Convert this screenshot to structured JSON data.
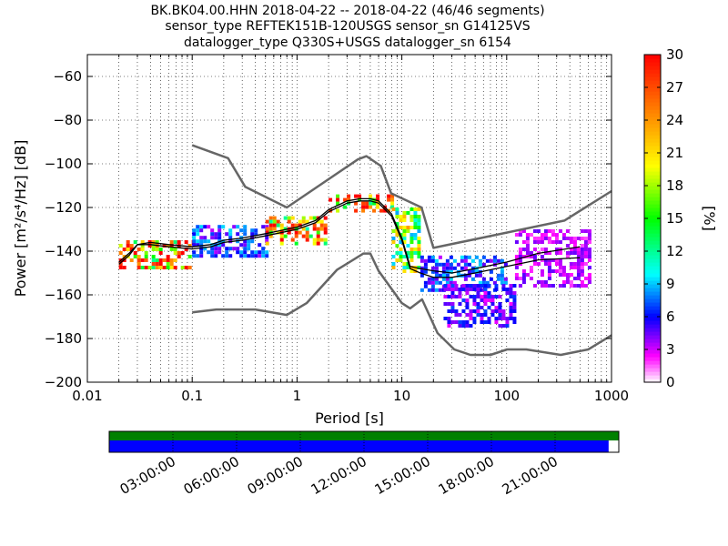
{
  "title_lines": [
    "BK.BK04.00.HHN   2018-04-22 -- 2018-04-22  (46/46 segments)",
    "sensor_type REFTEK151B-120USGS sensor_sn G14125VS",
    "datalogger_type Q330S+USGS datalogger_sn 6154"
  ],
  "chart_data": {
    "type": "heatmap",
    "xlabel": "Period [s]",
    "ylabel": "Power [m²/s⁴/Hz] [dB]",
    "x_scale": "log",
    "xlim": [
      0.01,
      1000
    ],
    "ylim": [
      -200,
      -50
    ],
    "x_ticks": [
      {
        "value": 0.01,
        "label": "0.01"
      },
      {
        "value": 0.1,
        "label": "0.1"
      },
      {
        "value": 1,
        "label": "1"
      },
      {
        "value": 10,
        "label": "10"
      },
      {
        "value": 100,
        "label": "100"
      },
      {
        "value": 1000,
        "label": "1000"
      }
    ],
    "y_ticks": [
      -60,
      -80,
      -100,
      -120,
      -140,
      -160,
      -180,
      -200
    ],
    "grid": true,
    "colorbar": {
      "label": "[%]",
      "min": 0,
      "max": 30,
      "ticks": [
        0,
        3,
        6,
        9,
        12,
        15,
        18,
        21,
        24,
        27,
        30
      ],
      "colormap": "pqlx"
    },
    "series": [
      {
        "name": "high noise model",
        "color": "#666666",
        "x": [
          0.1,
          0.22,
          0.32,
          0.8,
          3.8,
          4.6,
          6.3,
          7.9,
          15.4,
          20,
          354.8,
          1000
        ],
        "y": [
          -91.5,
          -97.4,
          -110.5,
          -120,
          -98,
          -96.5,
          -101,
          -113.5,
          -120,
          -138.5,
          -126,
          -112.5
        ]
      },
      {
        "name": "low noise model",
        "color": "#666666",
        "x": [
          0.1,
          0.17,
          0.4,
          0.8,
          1.24,
          2.4,
          4.3,
          5,
          6,
          10,
          12,
          15.6,
          21.9,
          31.6,
          45,
          70,
          101,
          154,
          328,
          600,
          1000
        ],
        "y": [
          -168,
          -166.7,
          -166.7,
          -169.2,
          -163.7,
          -148.6,
          -141.1,
          -141.1,
          -149,
          -163.8,
          -166.2,
          -162.1,
          -177.5,
          -185,
          -187.5,
          -187.5,
          -185,
          -185,
          -187.5,
          -185,
          -178.5
        ]
      },
      {
        "name": "mean",
        "color": "#000000",
        "x": [
          0.02,
          0.025,
          0.03,
          0.04,
          0.06,
          0.1,
          0.15,
          0.2,
          0.3,
          0.5,
          1,
          1.5,
          2,
          3,
          4,
          5,
          6,
          8,
          10,
          12,
          15,
          20,
          30,
          50,
          100,
          200,
          500
        ],
        "y": [
          -146,
          -142,
          -137,
          -137,
          -138,
          -139,
          -138,
          -136,
          -135,
          -133,
          -130,
          -127,
          -122,
          -118,
          -117,
          -117,
          -118,
          -124,
          -135,
          -148,
          -150,
          -152,
          -152,
          -150,
          -147,
          -144,
          -143
        ]
      },
      {
        "name": "mode",
        "color": "#000000",
        "x": [
          0.02,
          0.025,
          0.03,
          0.04,
          0.06,
          0.1,
          0.15,
          0.2,
          0.3,
          0.5,
          1,
          1.5,
          2,
          3,
          4,
          5,
          6,
          8,
          10,
          12,
          15,
          20,
          30,
          50,
          100,
          200,
          500
        ],
        "y": [
          -145,
          -141,
          -137,
          -136,
          -137,
          -138,
          -137,
          -135,
          -134,
          -132,
          -129,
          -126,
          -121,
          -117,
          -116,
          -116,
          -117,
          -123,
          -134,
          -147,
          -148,
          -149,
          -150,
          -148,
          -145,
          -141,
          -138
        ]
      }
    ],
    "density_bands": [
      {
        "x": [
          0.02,
          0.1
        ],
        "y": [
          -147,
          -135
        ],
        "level": 30
      },
      {
        "x": [
          0.1,
          0.5
        ],
        "y": [
          -143,
          -128
        ],
        "level": 8
      },
      {
        "x": [
          0.5,
          2
        ],
        "y": [
          -136,
          -124
        ],
        "level": 27
      },
      {
        "x": [
          2,
          8
        ],
        "y": [
          -122,
          -114
        ],
        "level": 30
      },
      {
        "x": [
          8,
          15
        ],
        "y": [
          -150,
          -120
        ],
        "level": 20
      },
      {
        "x": [
          15,
          100
        ],
        "y": [
          -158,
          -142
        ],
        "level": 8
      },
      {
        "x": [
          25,
          120
        ],
        "y": [
          -175,
          -155
        ],
        "level": 6
      },
      {
        "x": [
          120,
          600
        ],
        "y": [
          -156,
          -130
        ],
        "level": 4
      }
    ],
    "data_availability": {
      "time_ticks": [
        "03:00:00",
        "06:00:00",
        "09:00:00",
        "12:00:00",
        "15:00:00",
        "18:00:00",
        "21:00:00"
      ],
      "coverage_fraction": 0.98,
      "colors": {
        "gaps": "#008000",
        "data": "#0000ff"
      }
    }
  }
}
